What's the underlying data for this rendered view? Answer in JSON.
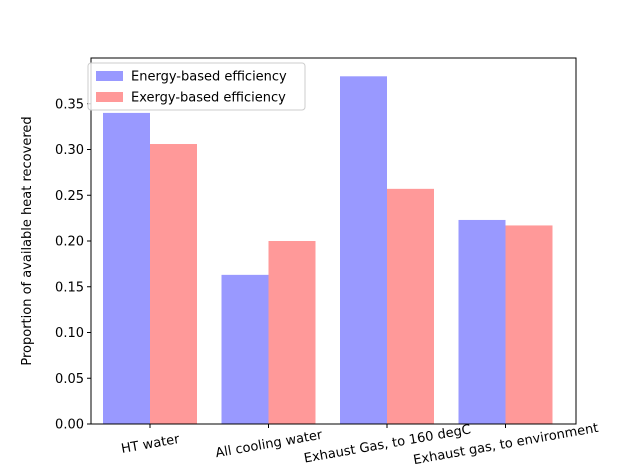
{
  "chart_data": {
    "type": "bar",
    "title": "",
    "xlabel": "",
    "ylabel": "Proportion of available heat recovered",
    "categories": [
      "HT water",
      "All cooling water",
      "Exhaust Gas, to 160 degC",
      "Exhaust gas, to environment"
    ],
    "series": [
      {
        "name": "Energy-based efficiency",
        "color": "#9999ff",
        "values": [
          0.34,
          0.163,
          0.38,
          0.223
        ]
      },
      {
        "name": "Exergy-based efficiency",
        "color": "#ff9999",
        "values": [
          0.306,
          0.2,
          0.257,
          0.217
        ]
      }
    ],
    "ylim": [
      0,
      0.4
    ],
    "yticks": [
      "0.00",
      "0.05",
      "0.10",
      "0.15",
      "0.20",
      "0.25",
      "0.30",
      "0.35"
    ],
    "grid": false,
    "legend_position": "top-left"
  }
}
